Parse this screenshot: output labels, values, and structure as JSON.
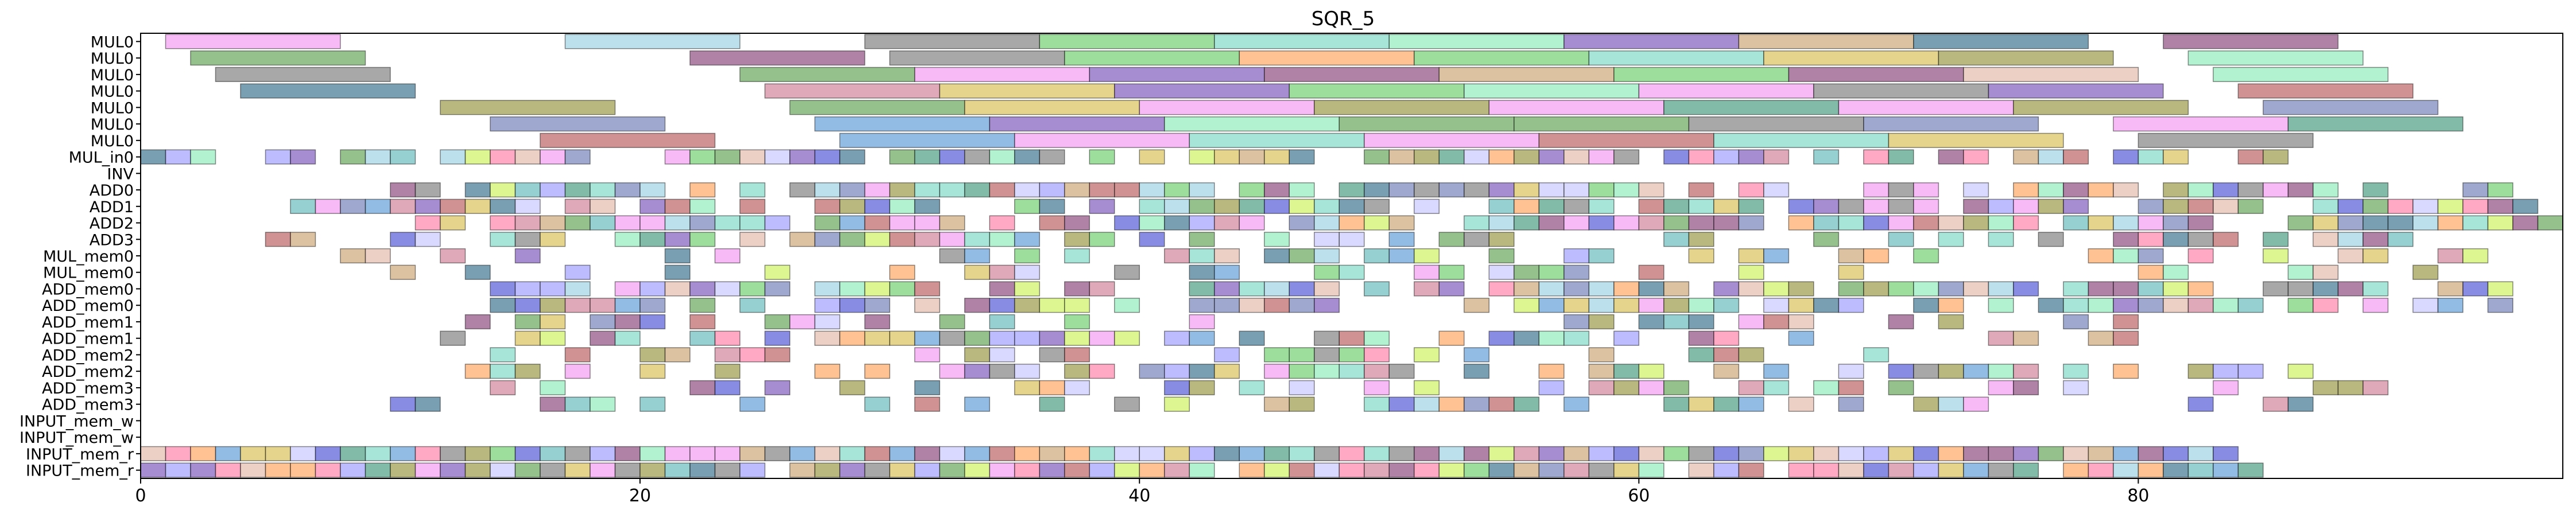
{
  "chart_data": {
    "type": "gantt",
    "title": "SQR_5",
    "xlabel": "",
    "ylabel": "",
    "xlim": [
      0,
      97
    ],
    "xticks": [
      "0",
      "20",
      "40",
      "60",
      "80"
    ],
    "xtick_values": [
      0,
      20,
      40,
      60,
      80
    ],
    "grid": false,
    "legend": "none",
    "rows": [
      "MUL0",
      "MUL0",
      "MUL0",
      "MUL0",
      "MUL0",
      "MUL0",
      "MUL0",
      "MUL_in0",
      "INV",
      "ADD0",
      "ADD1",
      "ADD2",
      "ADD3",
      "MUL_mem0",
      "MUL_mem0",
      "ADD_mem0",
      "ADD_mem0",
      "ADD_mem1",
      "ADD_mem1",
      "ADD_mem2",
      "ADD_mem2",
      "ADD_mem3",
      "ADD_mem3",
      "INPUT_mem_w",
      "INPUT_mem_w",
      "INPUT_mem_r",
      "INPUT_mem_r"
    ],
    "palette": [
      "#f48cf0",
      "#8fcde0",
      "#6e6e6e",
      "#5cc85c",
      "#6dd4c0",
      "#6a3fb0",
      "#c49a60",
      "#1f5f7f",
      "#7a2f6a",
      "#4f9a3f",
      "#c9708a",
      "#ff9a4a",
      "#c6f04a",
      "#7fe9b0",
      "#3a3fd0",
      "#2f8f6f",
      "#d4b840",
      "#b04a4a",
      "#4a8fd0",
      "#5f6fb0",
      "#e0b0a0",
      "#8a8a2a",
      "#c0c0ff",
      "#ff6f9f",
      "#50b0b0",
      "#9090ff"
    ],
    "bars": [
      {
        "row": 0,
        "start": 1,
        "end": 8,
        "c": 0
      },
      {
        "row": 0,
        "start": 17,
        "end": 24,
        "c": 1
      },
      {
        "row": 0,
        "start": 29,
        "end": 36,
        "c": 2
      },
      {
        "row": 0,
        "start": 36,
        "end": 43,
        "c": 3
      },
      {
        "row": 0,
        "start": 43,
        "end": 50,
        "c": 4
      },
      {
        "row": 0,
        "start": 50,
        "end": 57,
        "c": 13
      },
      {
        "row": 0,
        "start": 57,
        "end": 64,
        "c": 5
      },
      {
        "row": 0,
        "start": 64,
        "end": 71,
        "c": 6
      },
      {
        "row": 0,
        "start": 71,
        "end": 78,
        "c": 7
      },
      {
        "row": 0,
        "start": 81,
        "end": 88,
        "c": 8
      },
      {
        "row": 1,
        "start": 2,
        "end": 9,
        "c": 9
      },
      {
        "row": 1,
        "start": 22,
        "end": 29,
        "c": 8
      },
      {
        "row": 1,
        "start": 30,
        "end": 37,
        "c": 2
      },
      {
        "row": 1,
        "start": 37,
        "end": 44,
        "c": 3
      },
      {
        "row": 1,
        "start": 44,
        "end": 51,
        "c": 11
      },
      {
        "row": 1,
        "start": 51,
        "end": 58,
        "c": 3
      },
      {
        "row": 1,
        "start": 58,
        "end": 65,
        "c": 4
      },
      {
        "row": 1,
        "start": 65,
        "end": 72,
        "c": 16
      },
      {
        "row": 1,
        "start": 72,
        "end": 79,
        "c": 21
      },
      {
        "row": 1,
        "start": 82,
        "end": 89,
        "c": 13
      },
      {
        "row": 2,
        "start": 3,
        "end": 10,
        "c": 2
      },
      {
        "row": 2,
        "start": 24,
        "end": 31,
        "c": 9
      },
      {
        "row": 2,
        "start": 31,
        "end": 38,
        "c": 0
      },
      {
        "row": 2,
        "start": 38,
        "end": 45,
        "c": 5
      },
      {
        "row": 2,
        "start": 45,
        "end": 52,
        "c": 8
      },
      {
        "row": 2,
        "start": 52,
        "end": 59,
        "c": 6
      },
      {
        "row": 2,
        "start": 59,
        "end": 66,
        "c": 3
      },
      {
        "row": 2,
        "start": 66,
        "end": 73,
        "c": 8
      },
      {
        "row": 2,
        "start": 73,
        "end": 80,
        "c": 20
      },
      {
        "row": 2,
        "start": 83,
        "end": 90,
        "c": 13
      },
      {
        "row": 3,
        "start": 4,
        "end": 11,
        "c": 7
      },
      {
        "row": 3,
        "start": 25,
        "end": 32,
        "c": 10
      },
      {
        "row": 3,
        "start": 32,
        "end": 39,
        "c": 16
      },
      {
        "row": 3,
        "start": 39,
        "end": 46,
        "c": 5
      },
      {
        "row": 3,
        "start": 46,
        "end": 53,
        "c": 3
      },
      {
        "row": 3,
        "start": 53,
        "end": 60,
        "c": 13
      },
      {
        "row": 3,
        "start": 60,
        "end": 67,
        "c": 0
      },
      {
        "row": 3,
        "start": 67,
        "end": 74,
        "c": 2
      },
      {
        "row": 3,
        "start": 74,
        "end": 81,
        "c": 5
      },
      {
        "row": 3,
        "start": 84,
        "end": 91,
        "c": 17
      },
      {
        "row": 4,
        "start": 12,
        "end": 19,
        "c": 21
      },
      {
        "row": 4,
        "start": 26,
        "end": 33,
        "c": 9
      },
      {
        "row": 4,
        "start": 33,
        "end": 40,
        "c": 16
      },
      {
        "row": 4,
        "start": 40,
        "end": 47,
        "c": 0
      },
      {
        "row": 4,
        "start": 47,
        "end": 54,
        "c": 21
      },
      {
        "row": 4,
        "start": 54,
        "end": 61,
        "c": 0
      },
      {
        "row": 4,
        "start": 61,
        "end": 68,
        "c": 15
      },
      {
        "row": 4,
        "start": 68,
        "end": 75,
        "c": 0
      },
      {
        "row": 4,
        "start": 75,
        "end": 82,
        "c": 21
      },
      {
        "row": 4,
        "start": 85,
        "end": 92,
        "c": 19
      },
      {
        "row": 5,
        "start": 14,
        "end": 21,
        "c": 19
      },
      {
        "row": 5,
        "start": 27,
        "end": 34,
        "c": 18
      },
      {
        "row": 5,
        "start": 34,
        "end": 41,
        "c": 5
      },
      {
        "row": 5,
        "start": 41,
        "end": 48,
        "c": 13
      },
      {
        "row": 5,
        "start": 48,
        "end": 55,
        "c": 9
      },
      {
        "row": 5,
        "start": 55,
        "end": 62,
        "c": 9
      },
      {
        "row": 5,
        "start": 62,
        "end": 69,
        "c": 2
      },
      {
        "row": 5,
        "start": 69,
        "end": 76,
        "c": 19
      },
      {
        "row": 5,
        "start": 79,
        "end": 86,
        "c": 0
      },
      {
        "row": 5,
        "start": 86,
        "end": 93,
        "c": 15
      },
      {
        "row": 6,
        "start": 16,
        "end": 23,
        "c": 17
      },
      {
        "row": 6,
        "start": 28,
        "end": 35,
        "c": 18
      },
      {
        "row": 6,
        "start": 35,
        "end": 42,
        "c": 0
      },
      {
        "row": 6,
        "start": 42,
        "end": 49,
        "c": 4
      },
      {
        "row": 6,
        "start": 49,
        "end": 56,
        "c": 0
      },
      {
        "row": 6,
        "start": 56,
        "end": 63,
        "c": 17
      },
      {
        "row": 6,
        "start": 63,
        "end": 70,
        "c": 4
      },
      {
        "row": 6,
        "start": 70,
        "end": 77,
        "c": 16
      },
      {
        "row": 6,
        "start": 80,
        "end": 87,
        "c": 2
      }
    ],
    "cell_rows": [
      7,
      9,
      10,
      11,
      12,
      13,
      14,
      15,
      16,
      17,
      18,
      19,
      20,
      21,
      22,
      25,
      26
    ],
    "cell_ranges": {
      "7": [
        0,
        86
      ],
      "9": [
        10,
        95
      ],
      "10": [
        6,
        96
      ],
      "11": [
        11,
        97
      ],
      "12": [
        5,
        92
      ],
      "13": [
        8,
        95
      ],
      "14": [
        10,
        95
      ],
      "15": [
        14,
        95
      ],
      "16": [
        14,
        95
      ],
      "17": [
        12,
        80
      ],
      "18": [
        12,
        80
      ],
      "19": [
        13,
        73
      ],
      "20": [
        13,
        88
      ],
      "21": [
        13,
        90
      ],
      "22": [
        10,
        87
      ],
      "25": [
        0,
        84
      ],
      "26": [
        0,
        85
      ]
    },
    "cell_density": {
      "7": 0.75,
      "9": 0.8,
      "10": 0.82,
      "11": 0.78,
      "12": 0.55,
      "13": 0.5,
      "14": 0.35,
      "15": 0.7,
      "16": 0.75,
      "17": 0.55,
      "18": 0.6,
      "19": 0.5,
      "20": 0.5,
      "21": 0.45,
      "22": 0.5,
      "25": 0.97,
      "26": 0.97
    }
  }
}
